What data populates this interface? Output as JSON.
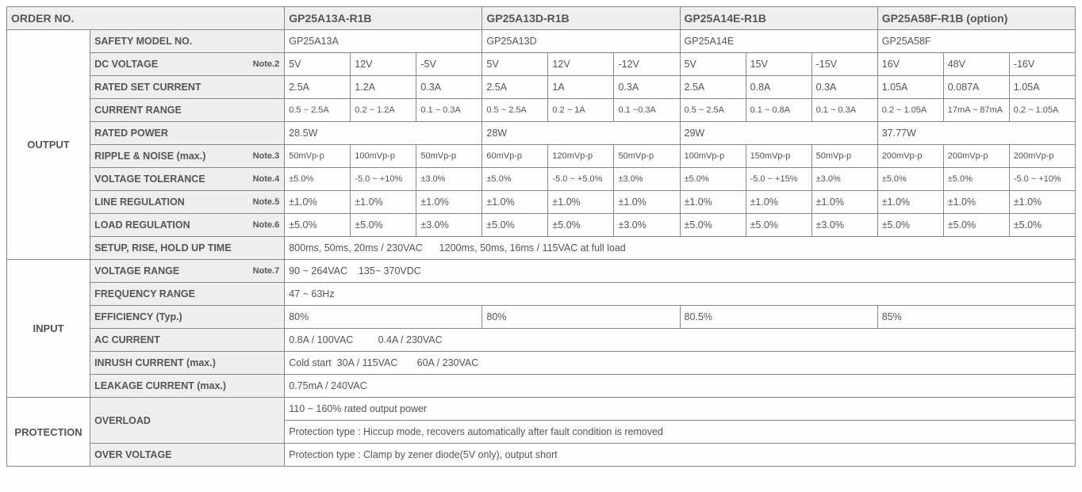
{
  "header": {
    "orderNo": "ORDER NO.",
    "models": [
      "GP25A13A-R1B",
      "GP25A13D-R1B",
      "GP25A14E-R1B",
      "GP25A58F-R1B (option)"
    ]
  },
  "sections": {
    "output": "OUTPUT",
    "input": "INPUT",
    "protection": "PROTECTION"
  },
  "rows": {
    "safety": {
      "label": "SAFETY MODEL NO.",
      "vals": [
        "GP25A13A",
        "GP25A13D",
        "GP25A14E",
        "GP25A58F"
      ]
    },
    "dcv": {
      "label": "DC VOLTAGE",
      "note": "Note.2",
      "vals": [
        "5V",
        "12V",
        "-5V",
        "5V",
        "12V",
        "-12V",
        "5V",
        "15V",
        "-15V",
        "16V",
        "48V",
        "-16V"
      ]
    },
    "rated": {
      "label": "RATED SET CURRENT",
      "vals": [
        "2.5A",
        "1.2A",
        "0.3A",
        "2.5A",
        "1A",
        "0.3A",
        "2.5A",
        "0.8A",
        "0.3A",
        "1.05A",
        "0.087A",
        "1.05A"
      ]
    },
    "crange": {
      "label": "CURRENT RANGE",
      "vals": [
        "0.5 ~ 2.5A",
        "0.2 ~ 1.2A",
        "0.1 ~ 0.3A",
        "0.5 ~ 2.5A",
        "0.2 ~ 1A",
        "0.1 ~0.3A",
        "0.5 ~ 2.5A",
        "0.1 ~ 0.8A",
        "0.1 ~ 0.3A",
        "0.2 ~ 1.05A",
        "17mA ~ 87mA",
        "0.2 ~ 1.05A"
      ]
    },
    "rpower": {
      "label": "RATED POWER",
      "vals": [
        "28.5W",
        "28W",
        "29W",
        "37.77W"
      ]
    },
    "ripple": {
      "label": "RIPPLE & NOISE (max.)",
      "note": "Note.3",
      "vals": [
        "50mVp-p",
        "100mVp-p",
        "50mVp-p",
        "60mVp-p",
        "120mVp-p",
        "50mVp-p",
        "100mVp-p",
        "150mVp-p",
        "50mVp-p",
        "200mVp-p",
        "200mVp-p",
        "200mVp-p"
      ]
    },
    "vtol": {
      "label": "VOLTAGE TOLERANCE",
      "note": "Note.4",
      "vals": [
        "±5.0%",
        "-5.0 ~ +10%",
        "±3.0%",
        "±5.0%",
        "-5.0 ~ +5.0%",
        "±3.0%",
        "±5.0%",
        "-5.0 ~ +15%",
        "±3.0%",
        "±5.0%",
        "±5.0%",
        "-5.0 ~ +10%"
      ]
    },
    "linereg": {
      "label": "LINE REGULATION",
      "note": "Note.5",
      "vals": [
        "±1.0%",
        "±1.0%",
        "±1.0%",
        "±1.0%",
        "±1.0%",
        "±1.0%",
        "±1.0%",
        "±1.0%",
        "±1.0%",
        "±1.0%",
        "±1.0%",
        "±1.0%"
      ]
    },
    "loadreg": {
      "label": "LOAD REGULATION",
      "note": "Note.6",
      "vals": [
        "±5.0%",
        "±5.0%",
        "±3.0%",
        "±5.0%",
        "±5.0%",
        "±3.0%",
        "±5.0%",
        "±5.0%",
        "±3.0%",
        "±5.0%",
        "±5.0%",
        "±5.0%"
      ]
    },
    "setup": {
      "label": "SETUP, RISE, HOLD UP TIME",
      "val": "800ms, 50ms, 20ms / 230VAC      1200ms, 50ms, 16ms / 115VAC at full load"
    },
    "vrange": {
      "label": "VOLTAGE RANGE",
      "note": "Note.7",
      "val": "90 ~ 264VAC    135~ 370VDC"
    },
    "freq": {
      "label": "FREQUENCY RANGE",
      "val": "47 ~ 63Hz"
    },
    "eff": {
      "label": "EFFICIENCY (Typ.)",
      "vals": [
        "80%",
        "80%",
        "80.5%",
        "85%"
      ]
    },
    "accur": {
      "label": "AC CURRENT",
      "val": "0.8A / 100VAC         0.4A / 230VAC"
    },
    "inrush": {
      "label": "INRUSH CURRENT (max.)",
      "val": "Cold start  30A / 115VAC       60A / 230VAC"
    },
    "leak": {
      "label": "LEAKAGE CURRENT (max.)",
      "val": "0.75mA / 240VAC"
    },
    "ovl": {
      "label": "OVERLOAD",
      "val1": "110 ~ 160%  rated output power",
      "val2": "Protection type : Hiccup mode, recovers automatically after fault condition is removed"
    },
    "ovv": {
      "label": "OVER VOLTAGE",
      "val": "Protection type : Clamp by zener diode(5V only), output short"
    }
  },
  "style": {
    "border_color": "#888888",
    "label_bg": "#eeeeee",
    "text_color": "#555555",
    "page_bg": "#fdfdfd",
    "font_family": "Arial",
    "base_font_size": 13,
    "small_font_size": 11
  }
}
